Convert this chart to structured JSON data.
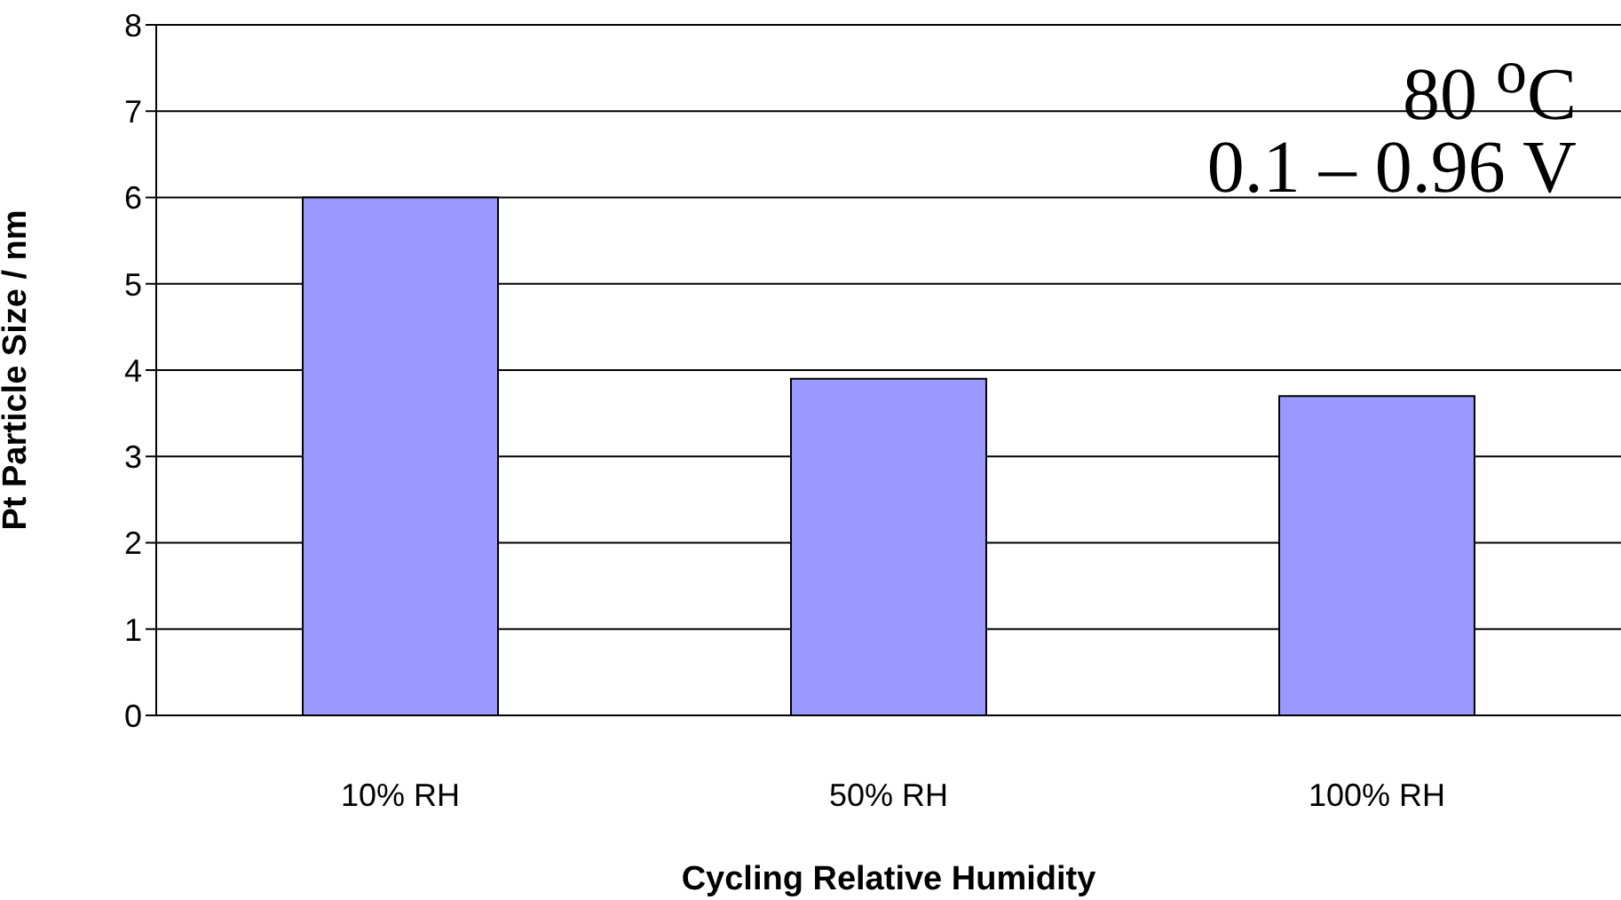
{
  "chart_data": {
    "type": "bar",
    "xlabel": "Cycling Relative Humidity",
    "ylabel": "Pt Particle Size / nm",
    "categories": [
      "10% RH",
      "50% RH",
      "100% RH"
    ],
    "values": [
      6.0,
      3.9,
      3.7
    ],
    "color": "#9999ff",
    "ylim": [
      0,
      8
    ],
    "yticks": [
      0,
      1,
      2,
      3,
      4,
      5,
      6,
      7,
      8
    ],
    "grid": "y",
    "annotations": [
      "80 $^{o}$C",
      "0.1 – 0.96 V"
    ]
  }
}
